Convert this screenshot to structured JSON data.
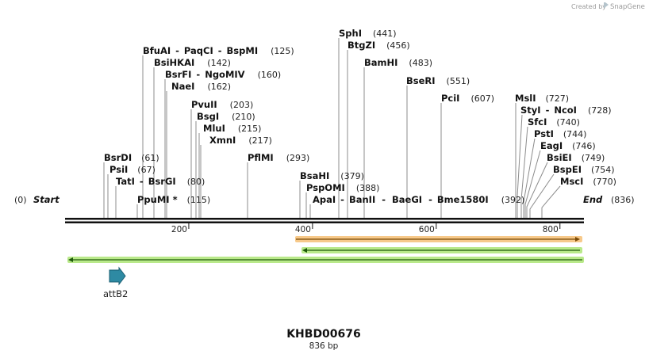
{
  "credit": {
    "prefix": "Created by",
    "brand": "SnapGene"
  },
  "sequence": {
    "name": "KHBD00676",
    "length_label": "836 bp",
    "length": 836,
    "start_label": "Start",
    "start_pos": "(0)",
    "end_label": "End",
    "end_pos": "(836)"
  },
  "ruler_ticks": [
    "200",
    "400",
    "600",
    "800"
  ],
  "ruler_values": [
    200,
    400,
    600,
    800
  ],
  "sites": [
    {
      "names": [
        "BfuAI",
        "PaqCI",
        "BspMI"
      ],
      "pos": 125,
      "pos_label": "(125)"
    },
    {
      "names": [
        "BsiHKAI"
      ],
      "pos": 142,
      "pos_label": "(142)"
    },
    {
      "names": [
        "BsrFI",
        "NgoMIV"
      ],
      "pos": 160,
      "pos_label": "(160)"
    },
    {
      "names": [
        "NaeI"
      ],
      "pos": 162,
      "pos_label": "(162)"
    },
    {
      "names": [
        "PvuII"
      ],
      "pos": 203,
      "pos_label": "(203)"
    },
    {
      "names": [
        "BsgI"
      ],
      "pos": 210,
      "pos_label": "(210)"
    },
    {
      "names": [
        "MluI"
      ],
      "pos": 215,
      "pos_label": "(215)"
    },
    {
      "names": [
        "XmnI"
      ],
      "pos": 217,
      "pos_label": "(217)"
    },
    {
      "names": [
        "PflMI"
      ],
      "pos": 293,
      "pos_label": "(293)"
    },
    {
      "names": [
        "BsrDI"
      ],
      "pos": 61,
      "pos_label": "(61)"
    },
    {
      "names": [
        "PsiI"
      ],
      "pos": 67,
      "pos_label": "(67)"
    },
    {
      "names": [
        "TatI",
        "BsrGI"
      ],
      "pos": 80,
      "pos_label": "(80)"
    },
    {
      "names": [
        "PpuMI *"
      ],
      "pos": 115,
      "pos_label": "(115)"
    },
    {
      "names": [
        "SphI"
      ],
      "pos": 441,
      "pos_label": "(441)"
    },
    {
      "names": [
        "BtgZI"
      ],
      "pos": 456,
      "pos_label": "(456)"
    },
    {
      "names": [
        "BamHI"
      ],
      "pos": 483,
      "pos_label": "(483)"
    },
    {
      "names": [
        "BseRI"
      ],
      "pos": 551,
      "pos_label": "(551)"
    },
    {
      "names": [
        "PciI"
      ],
      "pos": 607,
      "pos_label": "(607)"
    },
    {
      "names": [
        "BsaHI"
      ],
      "pos": 379,
      "pos_label": "(379)"
    },
    {
      "names": [
        "PspOMI"
      ],
      "pos": 388,
      "pos_label": "(388)"
    },
    {
      "names": [
        "ApaI",
        "BanII",
        "BaeGI",
        "Bme1580I"
      ],
      "pos": 392,
      "pos_label": "(392)"
    },
    {
      "names": [
        "MslI"
      ],
      "pos": 727,
      "pos_label": "(727)"
    },
    {
      "names": [
        "StyI",
        "NcoI"
      ],
      "pos": 728,
      "pos_label": "(728)"
    },
    {
      "names": [
        "SfcI"
      ],
      "pos": 740,
      "pos_label": "(740)"
    },
    {
      "names": [
        "PstI"
      ],
      "pos": 744,
      "pos_label": "(744)"
    },
    {
      "names": [
        "EagI"
      ],
      "pos": 746,
      "pos_label": "(746)"
    },
    {
      "names": [
        "BsiEI"
      ],
      "pos": 749,
      "pos_label": "(749)"
    },
    {
      "names": [
        "BspEI"
      ],
      "pos": 754,
      "pos_label": "(754)"
    },
    {
      "names": [
        "MscI"
      ],
      "pos": 770,
      "pos_label": "(770)"
    }
  ],
  "features": [
    {
      "name": "attB2",
      "type": "arrow",
      "color": "#2e7f97"
    },
    {
      "name": "orange-bar",
      "type": "bar",
      "color": "#f4a340"
    },
    {
      "name": "green-bar-short",
      "type": "bar",
      "color": "#8fd14f"
    },
    {
      "name": "green-bar-long",
      "type": "bar",
      "color": "#8fd14f"
    }
  ]
}
